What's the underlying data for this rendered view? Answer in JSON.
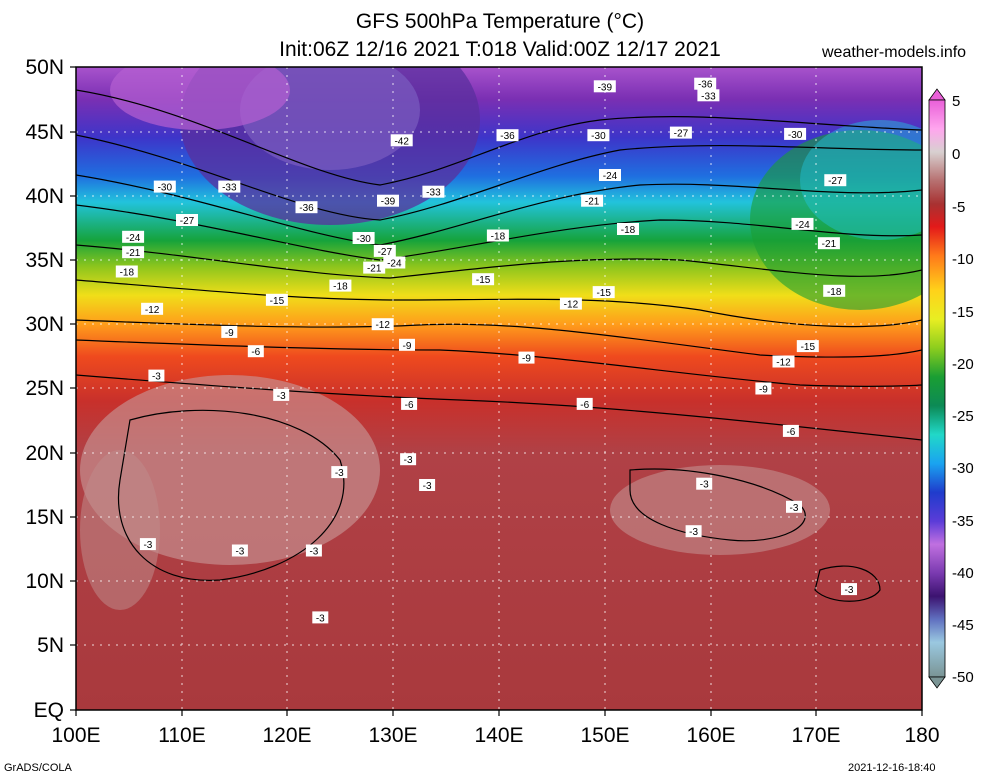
{
  "title_line1": "GFS 500hPa Temperature (°C)",
  "title_line2": "Init:06Z 12/16 2021 T:018 Valid:00Z 12/17 2021",
  "site": "weather-models.info",
  "footer_left": "GrADS/COLA",
  "footer_right": "2021-12-16-18:40",
  "lat_labels": [
    "50N",
    "45N",
    "40N",
    "35N",
    "30N",
    "25N",
    "20N",
    "15N",
    "10N",
    "5N",
    "EQ"
  ],
  "lon_labels": [
    "100E",
    "110E",
    "120E",
    "130E",
    "140E",
    "150E",
    "160E",
    "170E",
    "180"
  ],
  "colorbar_labels": [
    "5",
    "0",
    "-5",
    "-10",
    "-15",
    "-20",
    "-25",
    "-30",
    "-35",
    "-40",
    "-45",
    "-50"
  ],
  "colors": {
    "warm_dark": "#a8383c",
    "warm_light": "#c99a98",
    "red": "#e02626",
    "orange": "#ff8a1f",
    "yellow": "#f2e41a",
    "green": "#1a9e33",
    "cyan": "#21d8e8",
    "blue": "#1f3ccc",
    "purple": "#6b2ea6",
    "violet": "#b560d2"
  },
  "map_data": {
    "projection": "lat-lon",
    "lon_range": [
      100,
      180
    ],
    "lat_range": [
      0,
      50
    ],
    "variable": "500hPa temperature",
    "units": "°C",
    "contour_labels": [
      {
        "text": "-39",
        "lon": 150.0,
        "lat": 48.5
      },
      {
        "text": "-36",
        "lon": 159.5,
        "lat": 48.7
      },
      {
        "text": "-33",
        "lon": 159.8,
        "lat": 47.8
      },
      {
        "text": "-42",
        "lon": 130.8,
        "lat": 44.3
      },
      {
        "text": "-36",
        "lon": 140.8,
        "lat": 44.7
      },
      {
        "text": "-30",
        "lon": 149.4,
        "lat": 44.7
      },
      {
        "text": "-27",
        "lon": 157.2,
        "lat": 44.9
      },
      {
        "text": "-30",
        "lon": 168.0,
        "lat": 44.8
      },
      {
        "text": "-30",
        "lon": 108.4,
        "lat": 40.7
      },
      {
        "text": "-33",
        "lon": 114.5,
        "lat": 40.7
      },
      {
        "text": "-33",
        "lon": 133.8,
        "lat": 40.3
      },
      {
        "text": "-24",
        "lon": 150.5,
        "lat": 41.6
      },
      {
        "text": "-27",
        "lon": 171.8,
        "lat": 41.2
      },
      {
        "text": "-39",
        "lon": 129.5,
        "lat": 39.6
      },
      {
        "text": "-36",
        "lon": 121.8,
        "lat": 39.1
      },
      {
        "text": "-21",
        "lon": 148.8,
        "lat": 39.6
      },
      {
        "text": "-27",
        "lon": 110.5,
        "lat": 38.1
      },
      {
        "text": "-18",
        "lon": 152.2,
        "lat": 37.4
      },
      {
        "text": "-24",
        "lon": 168.7,
        "lat": 37.8
      },
      {
        "text": "-30",
        "lon": 127.2,
        "lat": 36.7
      },
      {
        "text": "-18",
        "lon": 139.9,
        "lat": 36.9
      },
      {
        "text": "-24",
        "lon": 105.4,
        "lat": 36.8
      },
      {
        "text": "-21",
        "lon": 171.2,
        "lat": 36.3
      },
      {
        "text": "-27",
        "lon": 129.2,
        "lat": 35.7
      },
      {
        "text": "-21",
        "lon": 105.4,
        "lat": 35.6
      },
      {
        "text": "-24",
        "lon": 130.1,
        "lat": 34.8
      },
      {
        "text": "-21",
        "lon": 128.2,
        "lat": 34.4
      },
      {
        "text": "-18",
        "lon": 104.8,
        "lat": 34.1
      },
      {
        "text": "-15",
        "lon": 138.5,
        "lat": 33.5
      },
      {
        "text": "-18",
        "lon": 125.0,
        "lat": 33.0
      },
      {
        "text": "-15",
        "lon": 149.9,
        "lat": 32.5
      },
      {
        "text": "-18",
        "lon": 171.7,
        "lat": 32.6
      },
      {
        "text": "-15",
        "lon": 119.0,
        "lat": 31.9
      },
      {
        "text": "-12",
        "lon": 146.8,
        "lat": 31.6
      },
      {
        "text": "-12",
        "lon": 107.2,
        "lat": 31.2
      },
      {
        "text": "-12",
        "lon": 129.0,
        "lat": 30.0
      },
      {
        "text": "-9",
        "lon": 114.5,
        "lat": 29.4
      },
      {
        "text": "-15",
        "lon": 169.2,
        "lat": 28.3
      },
      {
        "text": "-9",
        "lon": 131.3,
        "lat": 28.4
      },
      {
        "text": "-6",
        "lon": 117.0,
        "lat": 27.9
      },
      {
        "text": "-9",
        "lon": 142.6,
        "lat": 27.4
      },
      {
        "text": "-12",
        "lon": 166.9,
        "lat": 27.1
      },
      {
        "text": "-3",
        "lon": 107.6,
        "lat": 26.0
      },
      {
        "text": "-9",
        "lon": 165.0,
        "lat": 25.0
      },
      {
        "text": "-3",
        "lon": 119.4,
        "lat": 24.5
      },
      {
        "text": "-6",
        "lon": 131.5,
        "lat": 23.8
      },
      {
        "text": "-6",
        "lon": 148.1,
        "lat": 23.8
      },
      {
        "text": "-6",
        "lon": 167.6,
        "lat": 21.7
      },
      {
        "text": "-3",
        "lon": 131.4,
        "lat": 19.5
      },
      {
        "text": "-3",
        "lon": 124.9,
        "lat": 18.5
      },
      {
        "text": "-3",
        "lon": 133.2,
        "lat": 17.5
      },
      {
        "text": "-3",
        "lon": 159.4,
        "lat": 17.6
      },
      {
        "text": "-3",
        "lon": 167.9,
        "lat": 15.8
      },
      {
        "text": "-3",
        "lon": 158.4,
        "lat": 13.9
      },
      {
        "text": "-3",
        "lon": 106.8,
        "lat": 12.9
      },
      {
        "text": "-3",
        "lon": 115.5,
        "lat": 12.4
      },
      {
        "text": "-3",
        "lon": 122.5,
        "lat": 12.4
      },
      {
        "text": "-3",
        "lon": 173.1,
        "lat": 9.4
      },
      {
        "text": "-3",
        "lon": 123.1,
        "lat": 7.2
      }
    ]
  }
}
